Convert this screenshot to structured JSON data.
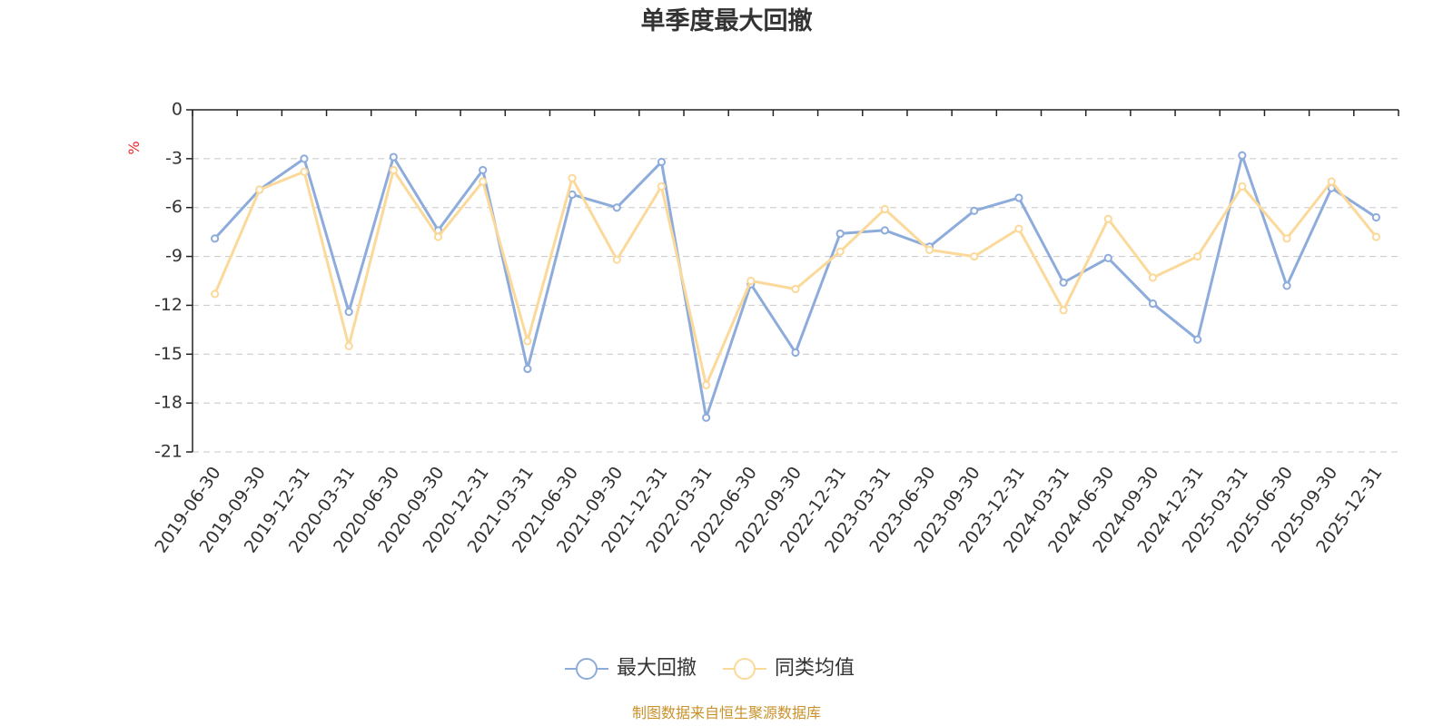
{
  "chart_data": {
    "type": "line",
    "title": "单季度最大回撤",
    "ylabel": "%",
    "ylim": [
      -21,
      0
    ],
    "yticks": [
      0,
      -3,
      -6,
      -9,
      -12,
      -15,
      -18,
      -21
    ],
    "grid": true,
    "legend_position": "bottom-center",
    "categories": [
      "2019-06-30",
      "2019-09-30",
      "2019-12-31",
      "2020-03-31",
      "2020-06-30",
      "2020-09-30",
      "2020-12-31",
      "2021-03-31",
      "2021-06-30",
      "2021-09-30",
      "2021-12-31",
      "2022-03-31",
      "2022-06-30",
      "2022-09-30",
      "2022-12-31",
      "2023-03-31",
      "2023-06-30",
      "2023-09-30",
      "2023-12-31",
      "2024-03-31",
      "2024-06-30",
      "2024-09-30",
      "2024-12-31",
      "2025-03-31",
      "2025-06-30",
      "2025-09-30",
      "2025-12-31"
    ],
    "series": [
      {
        "name": "最大回撤",
        "color": "#8eacdb",
        "values": [
          -7.9,
          -4.9,
          -3.0,
          -12.4,
          -2.9,
          -7.4,
          -3.7,
          -15.9,
          -5.2,
          -6.0,
          -3.2,
          -18.9,
          -10.7,
          -14.9,
          -7.6,
          -7.4,
          -8.4,
          -6.2,
          -5.4,
          -10.6,
          -9.1,
          -11.9,
          -14.1,
          -2.8,
          -10.8,
          -4.8,
          -6.6
        ]
      },
      {
        "name": "同类均值",
        "color": "#fbd99a",
        "values": [
          -11.3,
          -4.9,
          -3.8,
          -14.5,
          -3.7,
          -7.8,
          -4.4,
          -14.2,
          -4.2,
          -9.2,
          -4.7,
          -16.9,
          -10.5,
          -11.0,
          -8.7,
          -6.1,
          -8.6,
          -9.0,
          -7.3,
          -12.3,
          -6.7,
          -10.3,
          -9.0,
          -4.7,
          -7.9,
          -4.4,
          -7.8
        ]
      }
    ]
  },
  "colors": {
    "unit": "#e8262a",
    "source": "#c8912a",
    "axis": "#222222"
  },
  "source_note": "制图数据来自恒生聚源数据库"
}
